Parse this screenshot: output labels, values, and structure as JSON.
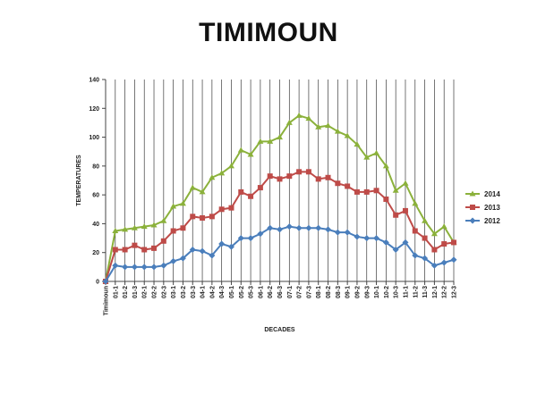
{
  "chart_data": {
    "type": "line",
    "title": "TIMIMOUN",
    "xlabel": "DECADES",
    "ylabel": "TEMPERATURES",
    "ylim": [
      0,
      140
    ],
    "yticks": [
      0,
      20,
      40,
      60,
      80,
      100,
      120,
      140
    ],
    "grid": "vertical",
    "legend_position": "right",
    "categories": [
      "Timimoun",
      "01-1",
      "01-2",
      "01-3",
      "02-1",
      "02-2",
      "02-3",
      "03-1",
      "03-2",
      "03-3",
      "04-1",
      "04-2",
      "04-3",
      "05-1",
      "05-2",
      "05-3",
      "06-1",
      "06-2",
      "06-3",
      "07-1",
      "07-2",
      "07-3",
      "08-1",
      "08-2",
      "08-3",
      "09-1",
      "09-2",
      "09-3",
      "10-1",
      "10-2",
      "10-3",
      "11-1",
      "11-2",
      "11-3",
      "12-1",
      "12-2",
      "12-3"
    ],
    "series": [
      {
        "name": "2014",
        "color": "#8bb13b",
        "marker": "triangle",
        "values": [
          0,
          35,
          36,
          37,
          38,
          39,
          42,
          52,
          54,
          65,
          62,
          72,
          75,
          80,
          91,
          88,
          97,
          97,
          100,
          110,
          115,
          113,
          107,
          108,
          104,
          101,
          95,
          86,
          89,
          80,
          63,
          68,
          54,
          42,
          33,
          38,
          27
        ]
      },
      {
        "name": "2013",
        "color": "#be4b48",
        "marker": "square",
        "values": [
          0,
          22,
          22,
          25,
          22,
          23,
          28,
          35,
          37,
          45,
          44,
          45,
          50,
          51,
          62,
          59,
          65,
          73,
          71,
          73,
          76,
          76,
          71,
          72,
          68,
          66,
          62,
          62,
          63,
          57,
          46,
          49,
          35,
          30,
          22,
          26,
          27
        ]
      },
      {
        "name": "2012",
        "color": "#4a7ebb",
        "marker": "diamond",
        "values": [
          0,
          11,
          10,
          10,
          10,
          10,
          11,
          14,
          16,
          22,
          21,
          18,
          26,
          24,
          30,
          30,
          33,
          37,
          36,
          38,
          37,
          37,
          37,
          36,
          34,
          34,
          31,
          30,
          30,
          27,
          22,
          27,
          18,
          16,
          11,
          13,
          15
        ]
      }
    ]
  }
}
